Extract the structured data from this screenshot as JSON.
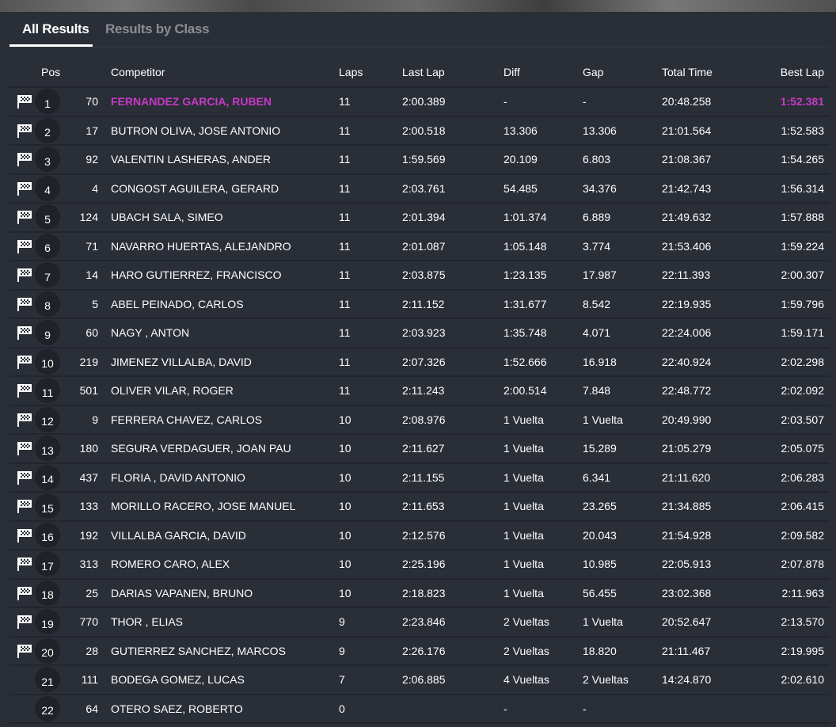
{
  "tabs": [
    {
      "label": "All Results",
      "active": true
    },
    {
      "label": "Results by Class",
      "active": false
    }
  ],
  "colors": {
    "leader": "#c63ac8",
    "background": "#2a2e36",
    "pos_badge": "#1f2228"
  },
  "columns": {
    "pos": "Pos",
    "competitor": "Competitor",
    "laps": "Laps",
    "last_lap": "Last Lap",
    "diff": "Diff",
    "gap": "Gap",
    "total_time": "Total Time",
    "best_lap": "Best Lap"
  },
  "rows": [
    {
      "flag": true,
      "pos": "1",
      "num": "70",
      "name": "FERNANDEZ GARCIA, RUBEN",
      "laps": "11",
      "last": "2:00.389",
      "diff": "-",
      "gap": "-",
      "total": "20:48.258",
      "best": "1:52.381"
    },
    {
      "flag": true,
      "pos": "2",
      "num": "17",
      "name": "BUTRON OLIVA, JOSE ANTONIO",
      "laps": "11",
      "last": "2:00.518",
      "diff": "13.306",
      "gap": "13.306",
      "total": "21:01.564",
      "best": "1:52.583"
    },
    {
      "flag": true,
      "pos": "3",
      "num": "92",
      "name": "VALENTIN LASHERAS, ANDER",
      "laps": "11",
      "last": "1:59.569",
      "diff": "20.109",
      "gap": "6.803",
      "total": "21:08.367",
      "best": "1:54.265"
    },
    {
      "flag": true,
      "pos": "4",
      "num": "4",
      "name": "CONGOST AGUILERA, GERARD",
      "laps": "11",
      "last": "2:03.761",
      "diff": "54.485",
      "gap": "34.376",
      "total": "21:42.743",
      "best": "1:56.314"
    },
    {
      "flag": true,
      "pos": "5",
      "num": "124",
      "name": "UBACH SALA, SIMEO",
      "laps": "11",
      "last": "2:01.394",
      "diff": "1:01.374",
      "gap": "6.889",
      "total": "21:49.632",
      "best": "1:57.888"
    },
    {
      "flag": true,
      "pos": "6",
      "num": "71",
      "name": "NAVARRO HUERTAS, ALEJANDRO",
      "laps": "11",
      "last": "2:01.087",
      "diff": "1:05.148",
      "gap": "3.774",
      "total": "21:53.406",
      "best": "1:59.224"
    },
    {
      "flag": true,
      "pos": "7",
      "num": "14",
      "name": "HARO GUTIERREZ, FRANCISCO",
      "laps": "11",
      "last": "2:03.875",
      "diff": "1:23.135",
      "gap": "17.987",
      "total": "22:11.393",
      "best": "2:00.307"
    },
    {
      "flag": true,
      "pos": "8",
      "num": "5",
      "name": "ABEL PEINADO, CARLOS",
      "laps": "11",
      "last": "2:11.152",
      "diff": "1:31.677",
      "gap": "8.542",
      "total": "22:19.935",
      "best": "1:59.796"
    },
    {
      "flag": true,
      "pos": "9",
      "num": "60",
      "name": "NAGY , ANTON",
      "laps": "11",
      "last": "2:03.923",
      "diff": "1:35.748",
      "gap": "4.071",
      "total": "22:24.006",
      "best": "1:59.171"
    },
    {
      "flag": true,
      "pos": "10",
      "num": "219",
      "name": "JIMENEZ VILLALBA, DAVID",
      "laps": "11",
      "last": "2:07.326",
      "diff": "1:52.666",
      "gap": "16.918",
      "total": "22:40.924",
      "best": "2:02.298"
    },
    {
      "flag": true,
      "pos": "11",
      "num": "501",
      "name": "OLIVER VILAR, ROGER",
      "laps": "11",
      "last": "2:11.243",
      "diff": "2:00.514",
      "gap": "7.848",
      "total": "22:48.772",
      "best": "2:02.092"
    },
    {
      "flag": true,
      "pos": "12",
      "num": "9",
      "name": "FERRERA CHAVEZ, CARLOS",
      "laps": "10",
      "last": "2:08.976",
      "diff": "1 Vuelta",
      "gap": "1 Vuelta",
      "total": "20:49.990",
      "best": "2:03.507"
    },
    {
      "flag": true,
      "pos": "13",
      "num": "180",
      "name": "SEGURA VERDAGUER, JOAN PAU",
      "laps": "10",
      "last": "2:11.627",
      "diff": "1 Vuelta",
      "gap": "15.289",
      "total": "21:05.279",
      "best": "2:05.075"
    },
    {
      "flag": true,
      "pos": "14",
      "num": "437",
      "name": "FLORIA , DAVID ANTONIO",
      "laps": "10",
      "last": "2:11.155",
      "diff": "1 Vuelta",
      "gap": "6.341",
      "total": "21:11.620",
      "best": "2:06.283"
    },
    {
      "flag": true,
      "pos": "15",
      "num": "133",
      "name": "MORILLO RACERO, JOSE MANUEL",
      "laps": "10",
      "last": "2:11.653",
      "diff": "1 Vuelta",
      "gap": "23.265",
      "total": "21:34.885",
      "best": "2:06.415"
    },
    {
      "flag": true,
      "pos": "16",
      "num": "192",
      "name": "VILLALBA GARCIA, DAVID",
      "laps": "10",
      "last": "2:12.576",
      "diff": "1 Vuelta",
      "gap": "20.043",
      "total": "21:54.928",
      "best": "2:09.582"
    },
    {
      "flag": true,
      "pos": "17",
      "num": "313",
      "name": "ROMERO CARO, ALEX",
      "laps": "10",
      "last": "2:25.196",
      "diff": "1 Vuelta",
      "gap": "10.985",
      "total": "22:05.913",
      "best": "2:07.878"
    },
    {
      "flag": true,
      "pos": "18",
      "num": "25",
      "name": "DARIAS VAPANEN, BRUNO",
      "laps": "10",
      "last": "2:18.823",
      "diff": "1 Vuelta",
      "gap": "56.455",
      "total": "23:02.368",
      "best": "2:11.963"
    },
    {
      "flag": true,
      "pos": "19",
      "num": "770",
      "name": "THOR , ELIAS",
      "laps": "9",
      "last": "2:23.846",
      "diff": "2 Vueltas",
      "gap": "1 Vuelta",
      "total": "20:52.647",
      "best": "2:13.570"
    },
    {
      "flag": true,
      "pos": "20",
      "num": "28",
      "name": "GUTIERREZ SANCHEZ, MARCOS",
      "laps": "9",
      "last": "2:26.176",
      "diff": "2 Vueltas",
      "gap": "18.820",
      "total": "21:11.467",
      "best": "2:19.995"
    },
    {
      "flag": false,
      "pos": "21",
      "num": "111",
      "name": "BODEGA GOMEZ, LUCAS",
      "laps": "7",
      "last": "2:06.885",
      "diff": "4 Vueltas",
      "gap": "2 Vueltas",
      "total": "14:24.870",
      "best": "2:02.610"
    },
    {
      "flag": false,
      "pos": "22",
      "num": "64",
      "name": "OTERO SAEZ, ROBERTO",
      "laps": "0",
      "last": "",
      "diff": "-",
      "gap": "-",
      "total": "",
      "best": ""
    }
  ]
}
